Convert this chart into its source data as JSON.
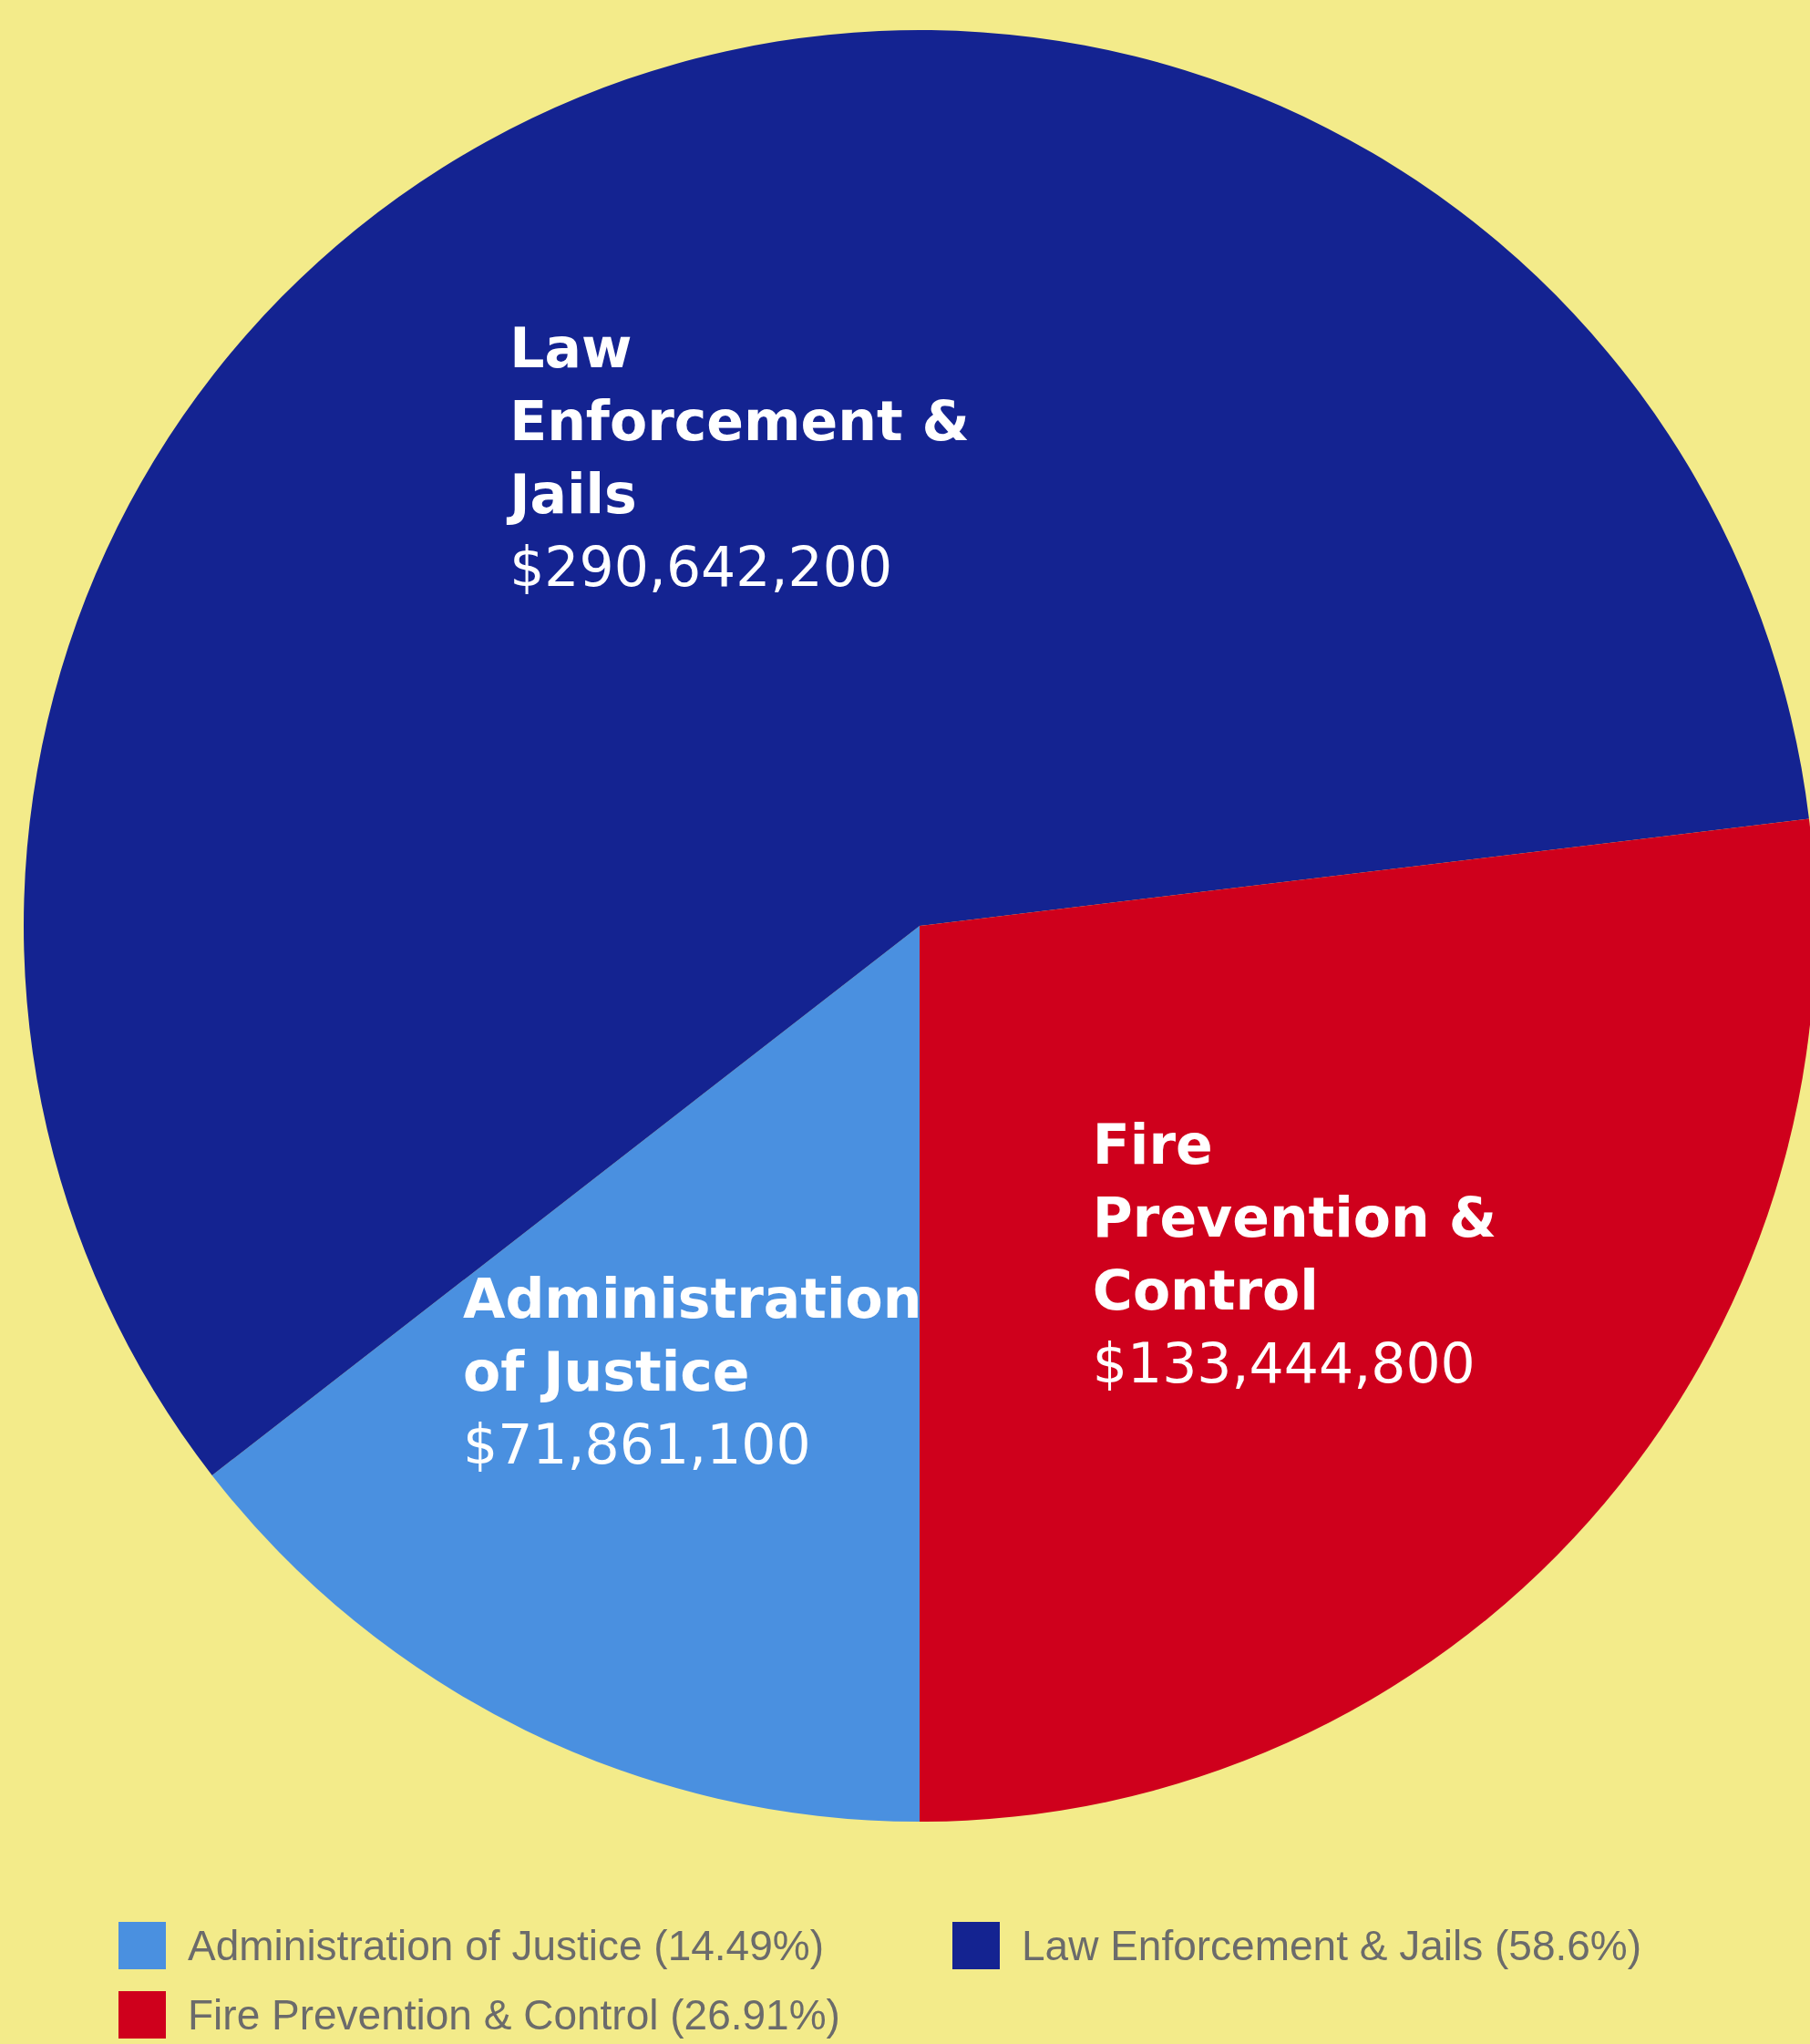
{
  "chart_data": {
    "type": "pie",
    "categories": [
      "Administration of Justice (14.49%)",
      "Law Enforcement & Jails (58.6%)",
      "Fire Prevention & Control (26.91%)"
    ],
    "values": [
      71861100,
      290642200,
      133444800
    ],
    "value_labels": [
      "$71,861,100",
      "$290,642,200",
      "$133,444,800"
    ],
    "annotations": [
      "Administration of Justice",
      "Law Enforcement & Jails",
      "Fire Prevention & Control"
    ],
    "colors": [
      "#4a90e0",
      "#142391",
      "#cf001c"
    ],
    "legend": "bottom"
  }
}
